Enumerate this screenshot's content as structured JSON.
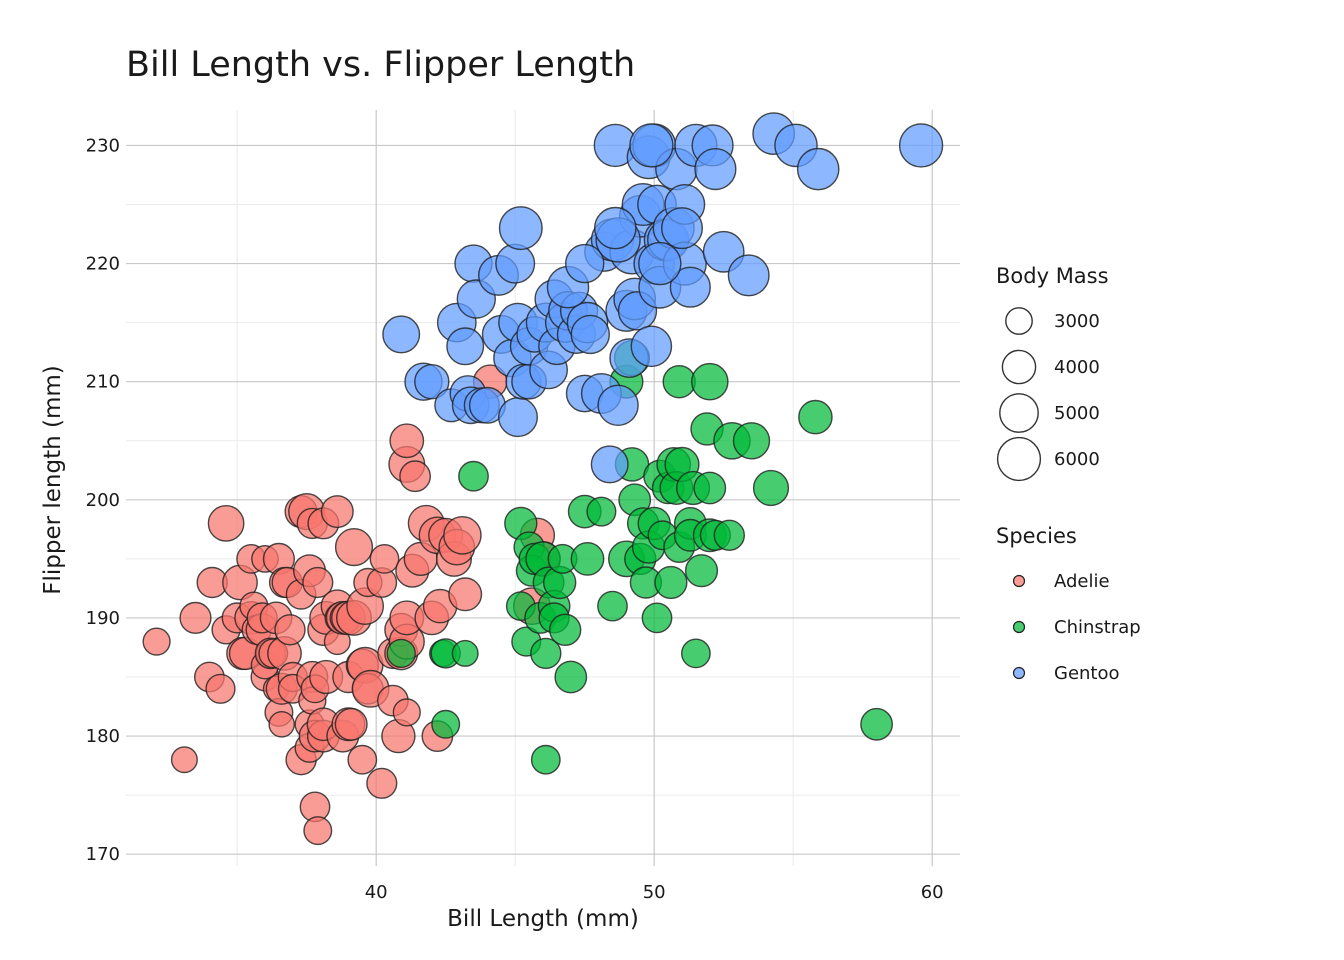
{
  "chart_data": {
    "type": "scatter",
    "title": "Bill Length vs. Flipper Length",
    "xlabel": "Bill Length (mm)",
    "ylabel": "Flipper length (mm)",
    "xlim": [
      31,
      61
    ],
    "ylim": [
      169,
      233
    ],
    "x_ticks": [
      40,
      50,
      60
    ],
    "y_ticks": [
      170,
      180,
      190,
      200,
      210,
      220,
      230
    ],
    "grid": true,
    "legend_position": "right",
    "size_legend": {
      "title": "Body Mass",
      "values": [
        3000,
        4000,
        5000,
        6000
      ]
    },
    "color_legend": {
      "title": "Species"
    },
    "series": [
      {
        "name": "Adelie",
        "color": "#F8766D",
        "points": [
          [
            32.1,
            188,
            3050
          ],
          [
            33.1,
            178,
            2900
          ],
          [
            33.5,
            190,
            3600
          ],
          [
            34.0,
            185,
            3400
          ],
          [
            34.1,
            193,
            3475
          ],
          [
            34.4,
            184,
            3325
          ],
          [
            34.6,
            189,
            3200
          ],
          [
            34.6,
            198,
            4400
          ],
          [
            35.0,
            190,
            3450
          ],
          [
            35.1,
            193,
            4200
          ],
          [
            35.2,
            187,
            3800
          ],
          [
            35.3,
            187,
            3800
          ],
          [
            35.5,
            195,
            3250
          ],
          [
            35.5,
            190,
            3850
          ],
          [
            35.6,
            191,
            3175
          ],
          [
            35.7,
            189,
            3350
          ],
          [
            35.9,
            189,
            3800
          ],
          [
            35.9,
            190,
            3450
          ],
          [
            36.0,
            185,
            3150
          ],
          [
            36.0,
            195,
            3000
          ],
          [
            36.0,
            186,
            3100
          ],
          [
            36.2,
            187,
            3300
          ],
          [
            36.2,
            187,
            3550
          ],
          [
            36.3,
            187,
            3300
          ],
          [
            36.4,
            184,
            2850
          ],
          [
            36.4,
            190,
            3700
          ],
          [
            36.5,
            182,
            3150
          ],
          [
            36.5,
            195,
            3600
          ],
          [
            36.6,
            184,
            3600
          ],
          [
            36.6,
            181,
            2850
          ],
          [
            36.7,
            193,
            3450
          ],
          [
            36.7,
            187,
            4050
          ],
          [
            36.8,
            193,
            3500
          ],
          [
            36.9,
            189,
            3500
          ],
          [
            37.0,
            185,
            3350
          ],
          [
            37.0,
            184,
            3300
          ],
          [
            37.3,
            192,
            3400
          ],
          [
            37.3,
            178,
            3500
          ],
          [
            37.3,
            199,
            3775
          ],
          [
            37.5,
            199,
            4475
          ],
          [
            37.6,
            194,
            3750
          ],
          [
            37.6,
            181,
            3300
          ],
          [
            37.6,
            179,
            3300
          ],
          [
            37.7,
            198,
            3500
          ],
          [
            37.7,
            185,
            3600
          ],
          [
            37.7,
            183,
            3075
          ],
          [
            37.8,
            180,
            3700
          ],
          [
            37.8,
            174,
            3400
          ],
          [
            37.8,
            184,
            3150
          ],
          [
            37.9,
            172,
            3150
          ],
          [
            37.9,
            193,
            3450
          ],
          [
            38.1,
            180,
            3725
          ],
          [
            38.1,
            181,
            3825
          ],
          [
            38.1,
            189,
            3650
          ],
          [
            38.1,
            198,
            3575
          ],
          [
            38.2,
            185,
            3950
          ],
          [
            38.2,
            190,
            3900
          ],
          [
            38.6,
            191,
            3800
          ],
          [
            38.6,
            199,
            3750
          ],
          [
            38.6,
            188,
            2900
          ],
          [
            38.7,
            190,
            3450
          ],
          [
            38.8,
            180,
            3725
          ],
          [
            38.8,
            190,
            3900
          ],
          [
            38.9,
            190,
            3600
          ],
          [
            39.0,
            181,
            3900
          ],
          [
            39.0,
            185,
            3650
          ],
          [
            39.0,
            190,
            4050
          ],
          [
            39.1,
            181,
            3750
          ],
          [
            39.2,
            190,
            4250
          ],
          [
            39.2,
            196,
            4675
          ],
          [
            39.5,
            186,
            3800
          ],
          [
            39.5,
            178,
            3250
          ],
          [
            39.6,
            186,
            4400
          ],
          [
            39.6,
            191,
            4600
          ],
          [
            39.7,
            193,
            3200
          ],
          [
            39.7,
            184,
            3550
          ],
          [
            39.8,
            184,
            4650
          ],
          [
            40.2,
            176,
            3450
          ],
          [
            40.2,
            193,
            3400
          ],
          [
            40.3,
            195,
            3250
          ],
          [
            40.6,
            183,
            3550
          ],
          [
            40.6,
            187,
            3475
          ],
          [
            40.8,
            180,
            3975
          ],
          [
            40.9,
            187,
            3900
          ],
          [
            40.9,
            189,
            3900
          ],
          [
            41.1,
            182,
            3050
          ],
          [
            41.1,
            188,
            4300
          ],
          [
            41.1,
            203,
            4450
          ],
          [
            41.1,
            190,
            4075
          ],
          [
            41.1,
            205,
            4050
          ],
          [
            41.3,
            194,
            3950
          ],
          [
            41.4,
            202,
            3550
          ],
          [
            41.6,
            195,
            3950
          ],
          [
            41.8,
            198,
            4450
          ],
          [
            42.0,
            190,
            4050
          ],
          [
            42.2,
            180,
            3550
          ],
          [
            42.2,
            197,
            4550
          ],
          [
            42.3,
            191,
            4000
          ],
          [
            42.5,
            197,
            4100
          ],
          [
            42.8,
            195,
            4250
          ],
          [
            42.9,
            196,
            4400
          ],
          [
            43.1,
            197,
            4750
          ],
          [
            43.2,
            192,
            3900
          ],
          [
            44.1,
            210,
            4000
          ],
          [
            45.6,
            191,
            4600
          ],
          [
            45.8,
            197,
            4150
          ],
          [
            46.0,
            195,
            4200
          ]
        ]
      },
      {
        "name": "Chinstrap",
        "color": "#00BA38",
        "points": [
          [
            40.9,
            187,
            3200
          ],
          [
            42.4,
            187,
            3000
          ],
          [
            42.5,
            187,
            3350
          ],
          [
            42.5,
            181,
            3150
          ],
          [
            43.2,
            187,
            2900
          ],
          [
            43.5,
            202,
            3400
          ],
          [
            45.2,
            198,
            3800
          ],
          [
            45.2,
            191,
            3250
          ],
          [
            45.4,
            188,
            3325
          ],
          [
            45.5,
            196,
            3500
          ],
          [
            45.6,
            194,
            3600
          ],
          [
            45.7,
            195,
            3650
          ],
          [
            45.9,
            190,
            3575
          ],
          [
            46.0,
            195,
            4150
          ],
          [
            46.1,
            178,
            3250
          ],
          [
            46.1,
            187,
            3500
          ],
          [
            46.2,
            193,
            3575
          ],
          [
            46.4,
            191,
            3700
          ],
          [
            46.4,
            190,
            3450
          ],
          [
            46.6,
            193,
            3800
          ],
          [
            46.7,
            195,
            3300
          ],
          [
            46.8,
            189,
            3650
          ],
          [
            47.0,
            185,
            3700
          ],
          [
            47.5,
            199,
            3850
          ],
          [
            47.6,
            195,
            3850
          ],
          [
            48.1,
            199,
            3300
          ],
          [
            48.5,
            191,
            3400
          ],
          [
            49.0,
            195,
            4400
          ],
          [
            49.0,
            210,
            3950
          ],
          [
            49.2,
            203,
            4000
          ],
          [
            49.3,
            200,
            3700
          ],
          [
            49.5,
            195,
            3650
          ],
          [
            49.6,
            198,
            3650
          ],
          [
            49.7,
            193,
            3650
          ],
          [
            49.8,
            196,
            3800
          ],
          [
            50.0,
            198,
            3800
          ],
          [
            50.1,
            190,
            3400
          ],
          [
            50.2,
            202,
            3775
          ],
          [
            50.3,
            197,
            3300
          ],
          [
            50.5,
            201,
            3675
          ],
          [
            50.6,
            193,
            3775
          ],
          [
            50.7,
            203,
            4050
          ],
          [
            50.8,
            201,
            3900
          ],
          [
            50.9,
            196,
            3550
          ],
          [
            51.0,
            203,
            4100
          ],
          [
            51.3,
            198,
            3700
          ],
          [
            51.3,
            197,
            3750
          ],
          [
            51.4,
            201,
            3950
          ],
          [
            51.5,
            187,
            3250
          ],
          [
            51.7,
            194,
            3775
          ],
          [
            51.9,
            206,
            3800
          ],
          [
            52.0,
            197,
            3900
          ],
          [
            52.0,
            201,
            3700
          ],
          [
            52.2,
            197,
            3450
          ],
          [
            52.7,
            197,
            3500
          ],
          [
            52.8,
            205,
            4550
          ],
          [
            53.5,
            205,
            4500
          ],
          [
            54.2,
            201,
            4300
          ],
          [
            55.8,
            207,
            4000
          ],
          [
            58.0,
            181,
            3700
          ],
          [
            50.9,
            210,
            3800
          ],
          [
            52.0,
            210,
            4550
          ],
          [
            49.2,
            212,
            4300
          ]
        ]
      },
      {
        "name": "Gentoo",
        "color": "#619CFF",
        "points": [
          [
            40.9,
            214,
            4650
          ],
          [
            41.7,
            210,
            4700
          ],
          [
            42.0,
            210,
            4150
          ],
          [
            42.7,
            208,
            3950
          ],
          [
            42.9,
            215,
            5000
          ],
          [
            43.2,
            213,
            4650
          ],
          [
            43.3,
            209,
            4400
          ],
          [
            43.4,
            208,
            4600
          ],
          [
            43.5,
            220,
            4700
          ],
          [
            43.6,
            217,
            4900
          ],
          [
            43.8,
            208,
            4300
          ],
          [
            44.0,
            208,
            4450
          ],
          [
            44.4,
            219,
            5250
          ],
          [
            44.5,
            214,
            4850
          ],
          [
            44.9,
            212,
            4750
          ],
          [
            45.0,
            220,
            5050
          ],
          [
            45.1,
            215,
            5000
          ],
          [
            45.1,
            207,
            5050
          ],
          [
            45.2,
            223,
            5950
          ],
          [
            45.3,
            210,
            4300
          ],
          [
            45.5,
            210,
            4200
          ],
          [
            45.5,
            213,
            4750
          ],
          [
            45.7,
            214,
            4400
          ],
          [
            46.1,
            215,
            5100
          ],
          [
            46.2,
            211,
            4800
          ],
          [
            46.4,
            217,
            4900
          ],
          [
            46.5,
            213,
            4550
          ],
          [
            46.8,
            215,
            5150
          ],
          [
            46.9,
            216,
            5000
          ],
          [
            47.2,
            214,
            4875
          ],
          [
            47.3,
            216,
            4725
          ],
          [
            47.5,
            209,
            4600
          ],
          [
            47.6,
            215,
            5400
          ],
          [
            47.7,
            214,
            4925
          ],
          [
            48.1,
            209,
            5250
          ],
          [
            48.2,
            221,
            5100
          ],
          [
            48.4,
            203,
            4625
          ],
          [
            48.5,
            222,
            5800
          ],
          [
            48.6,
            230,
            5800
          ],
          [
            48.7,
            208,
            5350
          ],
          [
            49.0,
            216,
            5550
          ],
          [
            49.1,
            212,
            5000
          ],
          [
            49.2,
            221,
            6300
          ],
          [
            49.3,
            217,
            5650
          ],
          [
            49.4,
            216,
            4925
          ],
          [
            49.5,
            224,
            5650
          ],
          [
            49.6,
            225,
            5700
          ],
          [
            49.8,
            229,
            5950
          ],
          [
            49.9,
            213,
            5400
          ],
          [
            50.0,
            220,
            5400
          ],
          [
            50.0,
            230,
            5950
          ],
          [
            50.1,
            225,
            5000
          ],
          [
            50.2,
            218,
            5700
          ],
          [
            50.4,
            222,
            5750
          ],
          [
            50.5,
            222,
            5550
          ],
          [
            50.7,
            223,
            5550
          ],
          [
            50.8,
            228,
            5600
          ],
          [
            51.1,
            220,
            6000
          ],
          [
            51.1,
            225,
            5250
          ],
          [
            51.3,
            218,
            5300
          ],
          [
            51.5,
            230,
            5800
          ],
          [
            52.1,
            230,
            5550
          ],
          [
            52.2,
            228,
            5550
          ],
          [
            52.5,
            221,
            5450
          ],
          [
            53.4,
            219,
            5500
          ],
          [
            54.3,
            231,
            5650
          ],
          [
            55.1,
            230,
            5850
          ],
          [
            55.9,
            228,
            5600
          ],
          [
            59.6,
            230,
            6050
          ],
          [
            48.7,
            222,
            6300
          ],
          [
            49.9,
            230,
            6050
          ],
          [
            50.2,
            220,
            5800
          ],
          [
            51.0,
            223,
            5500
          ],
          [
            46.9,
            218,
            5600
          ],
          [
            47.5,
            220,
            4900
          ],
          [
            48.6,
            223,
            5600
          ]
        ]
      }
    ]
  }
}
